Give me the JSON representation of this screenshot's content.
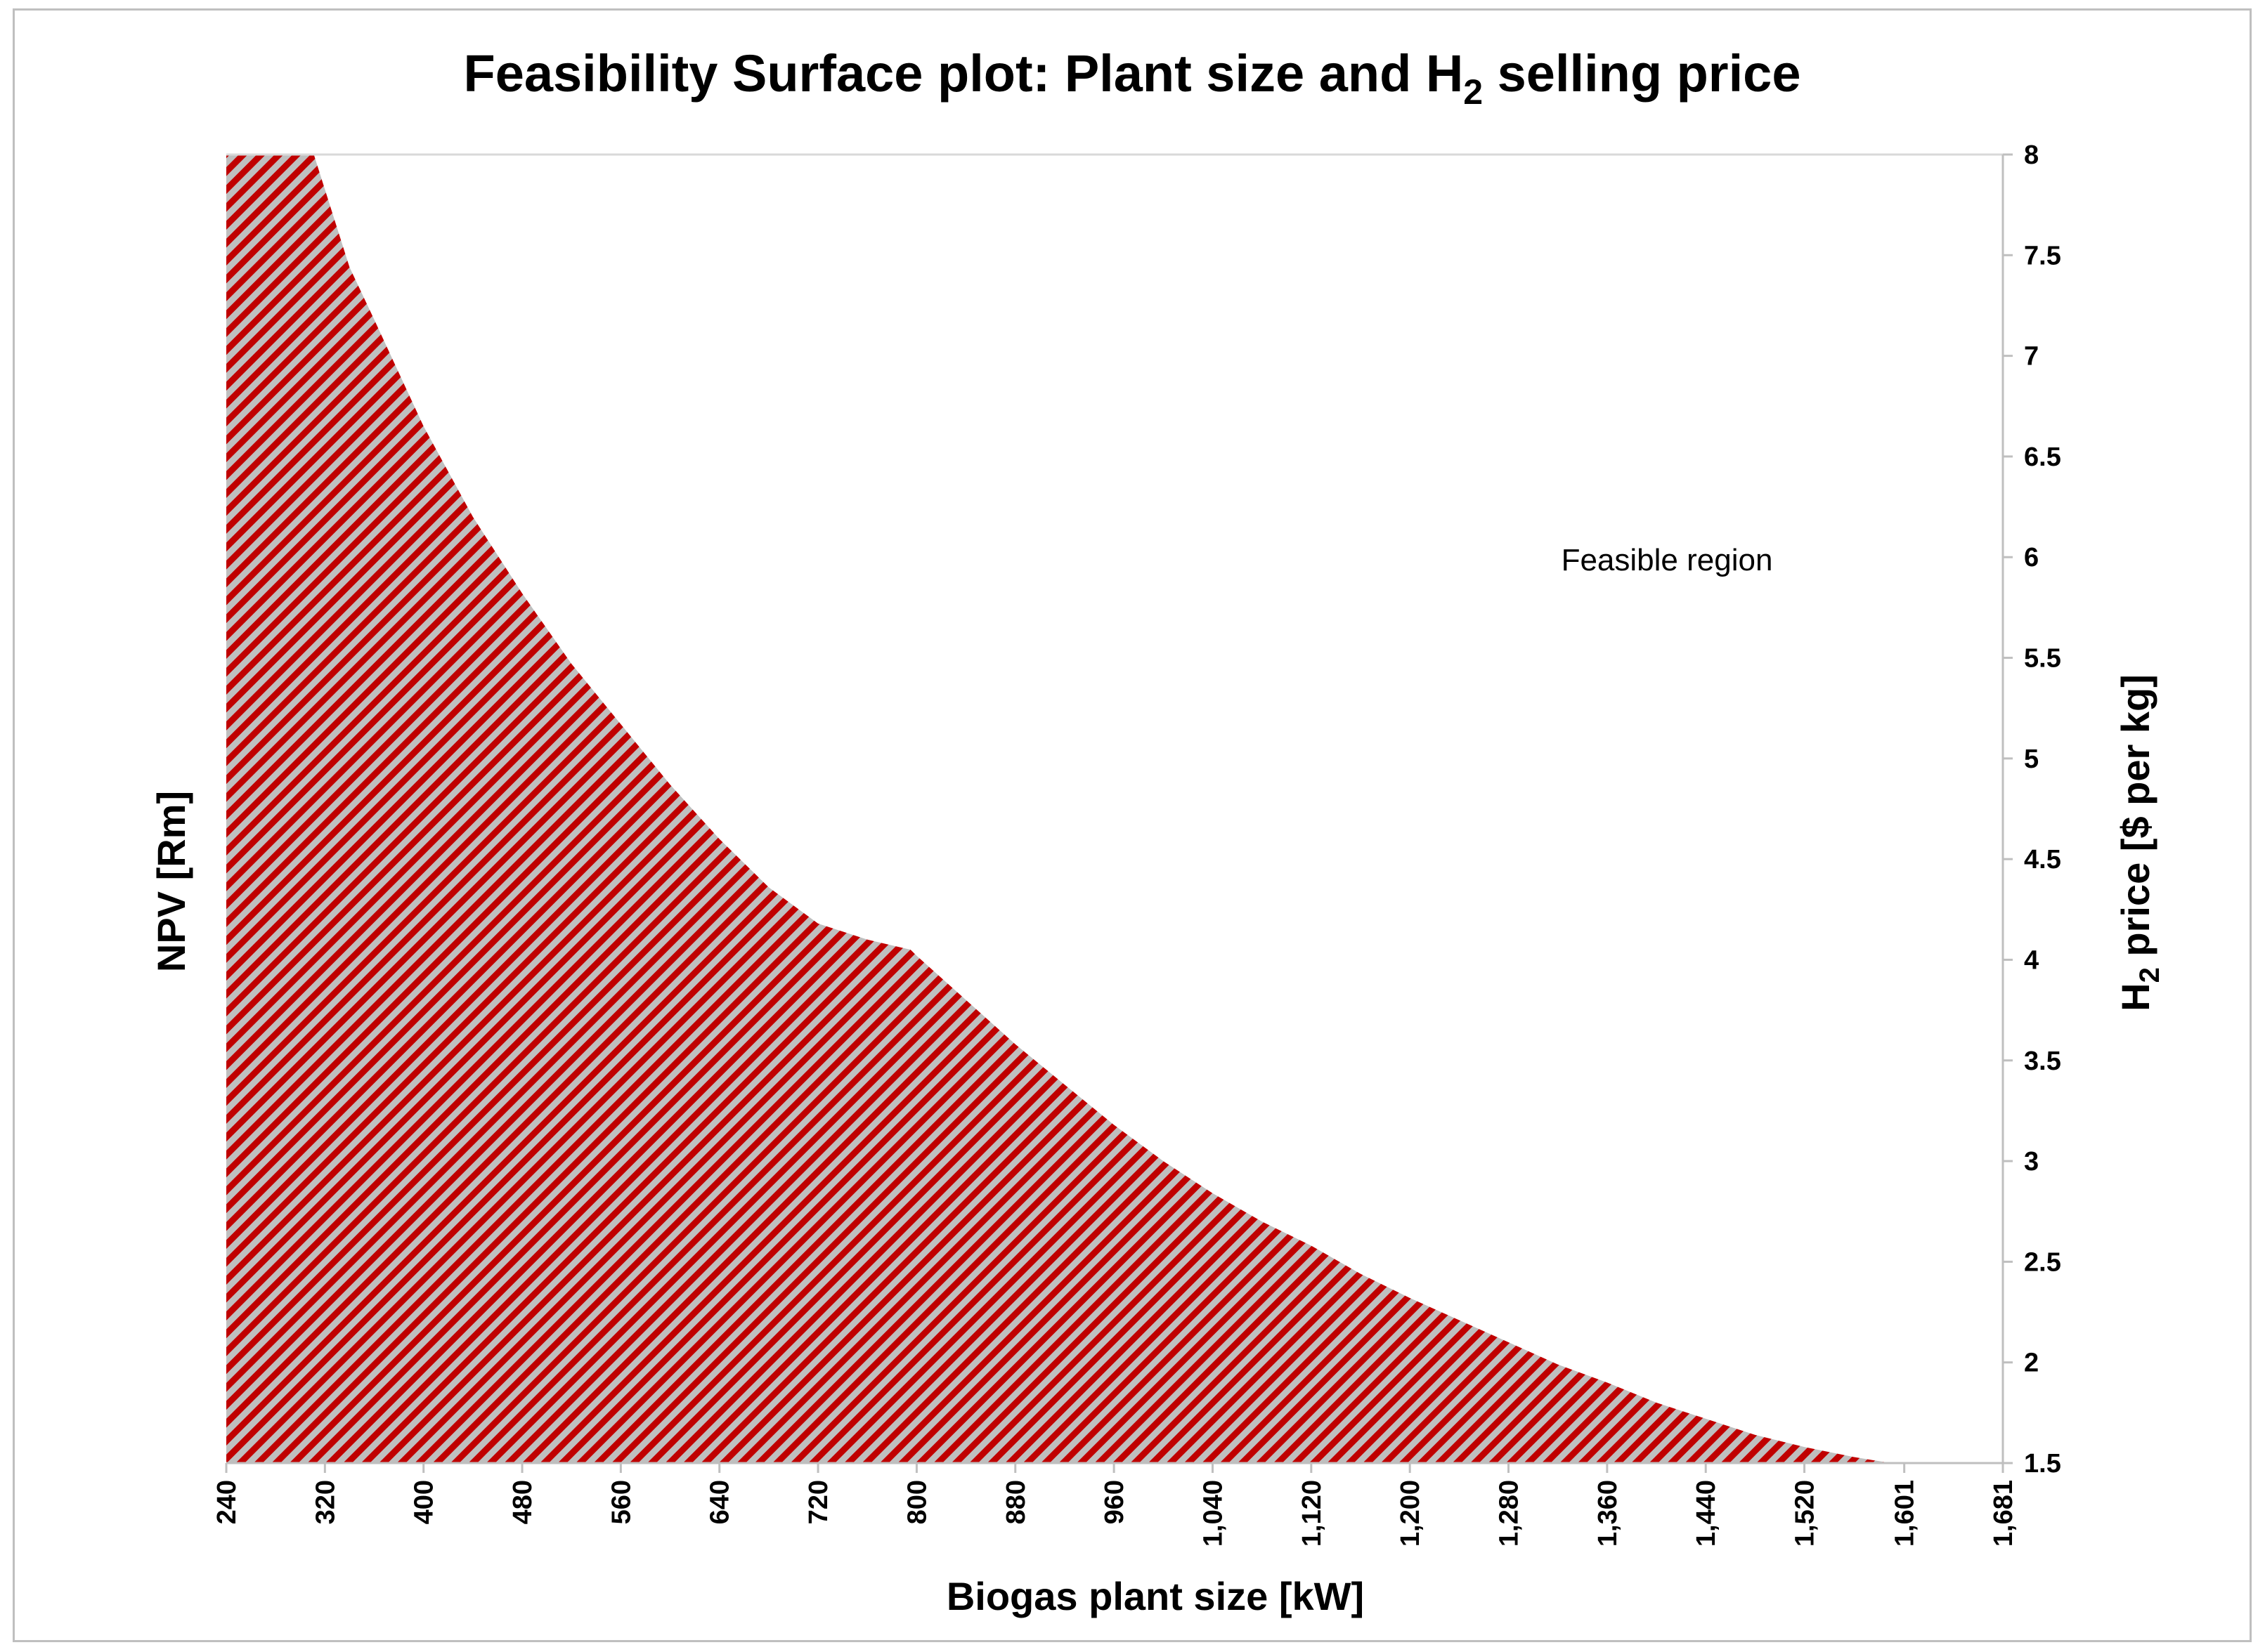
{
  "chart_data": {
    "type": "area",
    "title": "Feasibility Surface plot: Plant size and H",
    "title_subscript": "2",
    "title_suffix": " selling price",
    "xlabel": "Biogas plant size [kW]",
    "ylabel_left": "NPV [Rm]",
    "ylabel_right": "H",
    "ylabel_right_subscript": "2",
    "ylabel_right_suffix": " price [$ per kg]",
    "x_tick_labels": [
      "240",
      "320",
      "400",
      "480",
      "560",
      "640",
      "720",
      "800",
      "880",
      "960",
      "1,040",
      "1,120",
      "1,200",
      "1,280",
      "1,360",
      "1,440",
      "1,520",
      "1,601",
      "1,681"
    ],
    "x_tick_values": [
      240,
      320,
      400,
      480,
      560,
      640,
      720,
      800,
      880,
      960,
      1040,
      1120,
      1200,
      1280,
      1360,
      1440,
      1520,
      1601,
      1681
    ],
    "xlim": [
      240,
      1681
    ],
    "y_tick_labels": [
      "1.5",
      "2",
      "2.5",
      "3",
      "3.5",
      "4",
      "4.5",
      "5",
      "5.5",
      "6",
      "6.5",
      "7",
      "7.5",
      "8"
    ],
    "y_tick_values": [
      1.5,
      2,
      2.5,
      3,
      3.5,
      4,
      4.5,
      5,
      5.5,
      6,
      6.5,
      7,
      7.5,
      8
    ],
    "ylim": [
      1.5,
      8
    ],
    "y_axis_side": "right",
    "annotation": "Feasible region",
    "grid": false,
    "legend": "none",
    "series": [
      {
        "fill": "diagonal-hatch",
        "x": [
          240,
          311,
          340,
          360,
          400,
          440,
          480,
          520,
          560,
          600,
          640,
          680,
          720,
          760,
          795,
          800,
          840,
          880,
          920,
          960,
          1000,
          1040,
          1080,
          1120,
          1160,
          1200,
          1240,
          1280,
          1320,
          1360,
          1400,
          1440,
          1480,
          1520,
          1560,
          1590
        ],
        "y": [
          8,
          8,
          7.44,
          7.18,
          6.65,
          6.2,
          5.82,
          5.47,
          5.17,
          4.87,
          4.6,
          4.36,
          4.18,
          4.1,
          4.05,
          4.02,
          3.8,
          3.58,
          3.38,
          3.18,
          3.0,
          2.84,
          2.7,
          2.58,
          2.44,
          2.32,
          2.21,
          2.1,
          1.99,
          1.9,
          1.8,
          1.72,
          1.64,
          1.58,
          1.53,
          1.5
        ]
      }
    ]
  },
  "colors": {
    "hatch_line": "#c00000",
    "hatch_bg": "#bfbfbf",
    "axis_line": "#bfbfbf",
    "frame": "#bfbfbf",
    "text": "#000000"
  }
}
